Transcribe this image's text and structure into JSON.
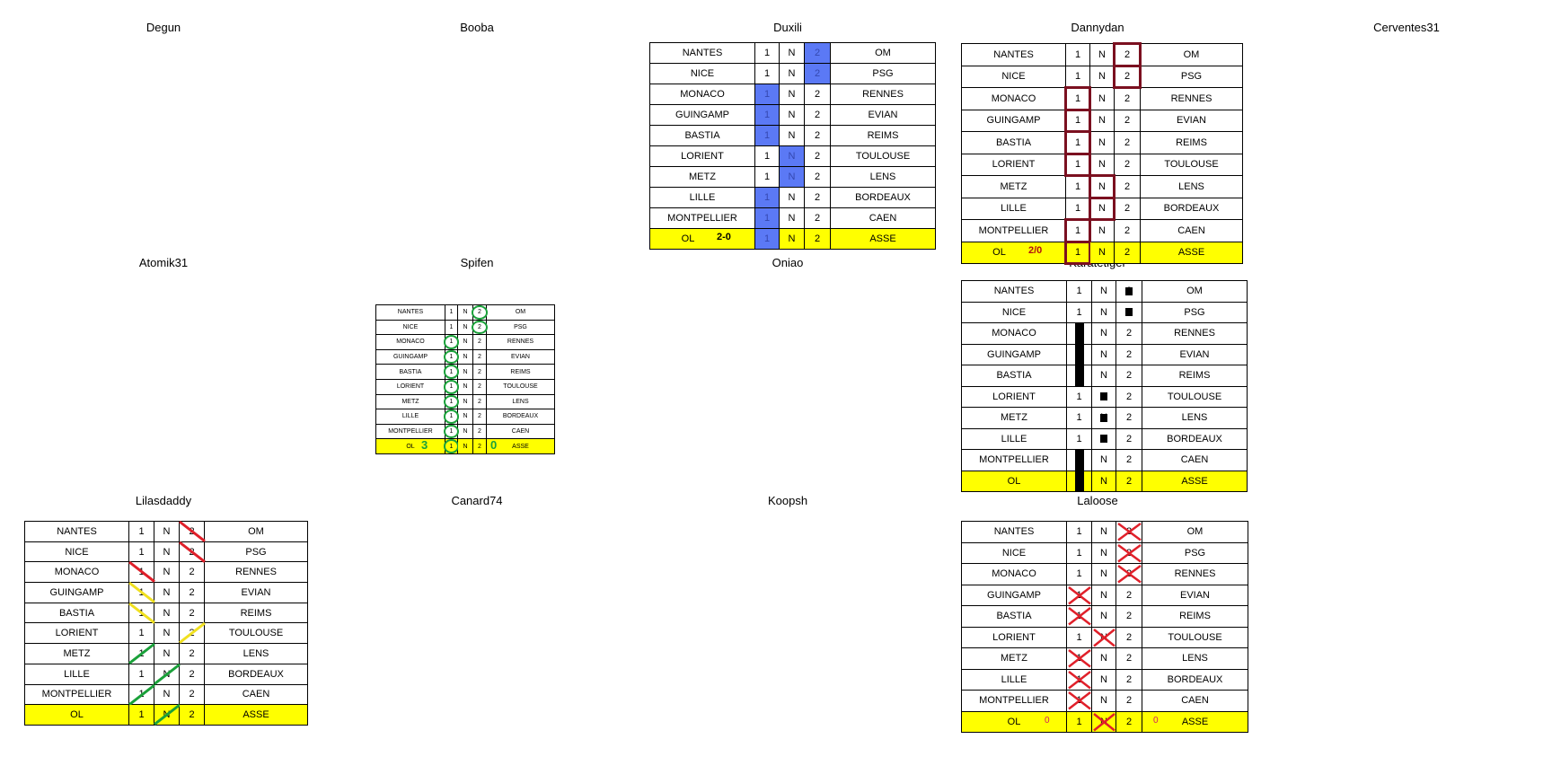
{
  "players": {
    "degun": "Degun",
    "booba": "Booba",
    "duxili": "Duxili",
    "dannydan": "Dannydan",
    "cerventes31": "Cerventes31",
    "atomik31": "Atomik31",
    "spifen": "Spifen",
    "oniao": "Oniao",
    "karatetiger": "Karatetiger",
    "lilasdaddy": "Lilasdaddy",
    "canard74": "Canard74",
    "koopsh": "Koopsh",
    "laloose": "Laloose"
  },
  "matches": [
    {
      "home": "NANTES",
      "away": "OM"
    },
    {
      "home": "NICE",
      "away": "PSG"
    },
    {
      "home": "MONACO",
      "away": "RENNES"
    },
    {
      "home": "GUINGAMP",
      "away": "EVIAN"
    },
    {
      "home": "BASTIA",
      "away": "REIMS"
    },
    {
      "home": "LORIENT",
      "away": "TOULOUSE"
    },
    {
      "home": "METZ",
      "away": "LENS"
    },
    {
      "home": "LILLE",
      "away": "BORDEAUX"
    },
    {
      "home": "MONTPELLIER",
      "away": "CAEN"
    },
    {
      "home": "OL",
      "away": "ASSE"
    }
  ],
  "options": {
    "one": "1",
    "draw": "N",
    "two": "2"
  },
  "picks": {
    "duxili": [
      "2",
      "2",
      "1",
      "1",
      "1",
      "N",
      "N",
      "1",
      "1",
      "1"
    ],
    "dannydan": [
      "2",
      "2",
      "1",
      "1",
      "1",
      "1",
      "N",
      "N",
      "1",
      "1"
    ],
    "spifen": [
      "2",
      "2",
      "1",
      "1",
      "1",
      "1",
      "1",
      "1",
      "1",
      "1"
    ],
    "karatetiger": [
      "2",
      "2",
      "1",
      "1",
      "1",
      "N",
      "N",
      "N",
      "1",
      "1"
    ],
    "lilasdaddy": [
      "2",
      "2",
      "1",
      "1",
      "1",
      "2",
      "1",
      "N",
      "1",
      "N"
    ],
    "laloose": [
      "2",
      "2",
      "2",
      "1",
      "1",
      "N",
      "1",
      "1",
      "1",
      "N"
    ]
  },
  "scores": {
    "duxili": "2-0",
    "dannydan": "2/0",
    "spifen_home": "3",
    "spifen_away": "0",
    "laloose_home": "0",
    "laloose_away": "0"
  },
  "colors": {
    "final_row": "#ffff00",
    "duxili_highlight": "#5b79f5",
    "dannydan_box": "#7b1020",
    "spifen_circle": "#1aa13a",
    "laloose_cross": "#e0202a",
    "lilas_red": "#e0202a",
    "lilas_yellow": "#f0e020",
    "lilas_green": "#1aa13a"
  }
}
